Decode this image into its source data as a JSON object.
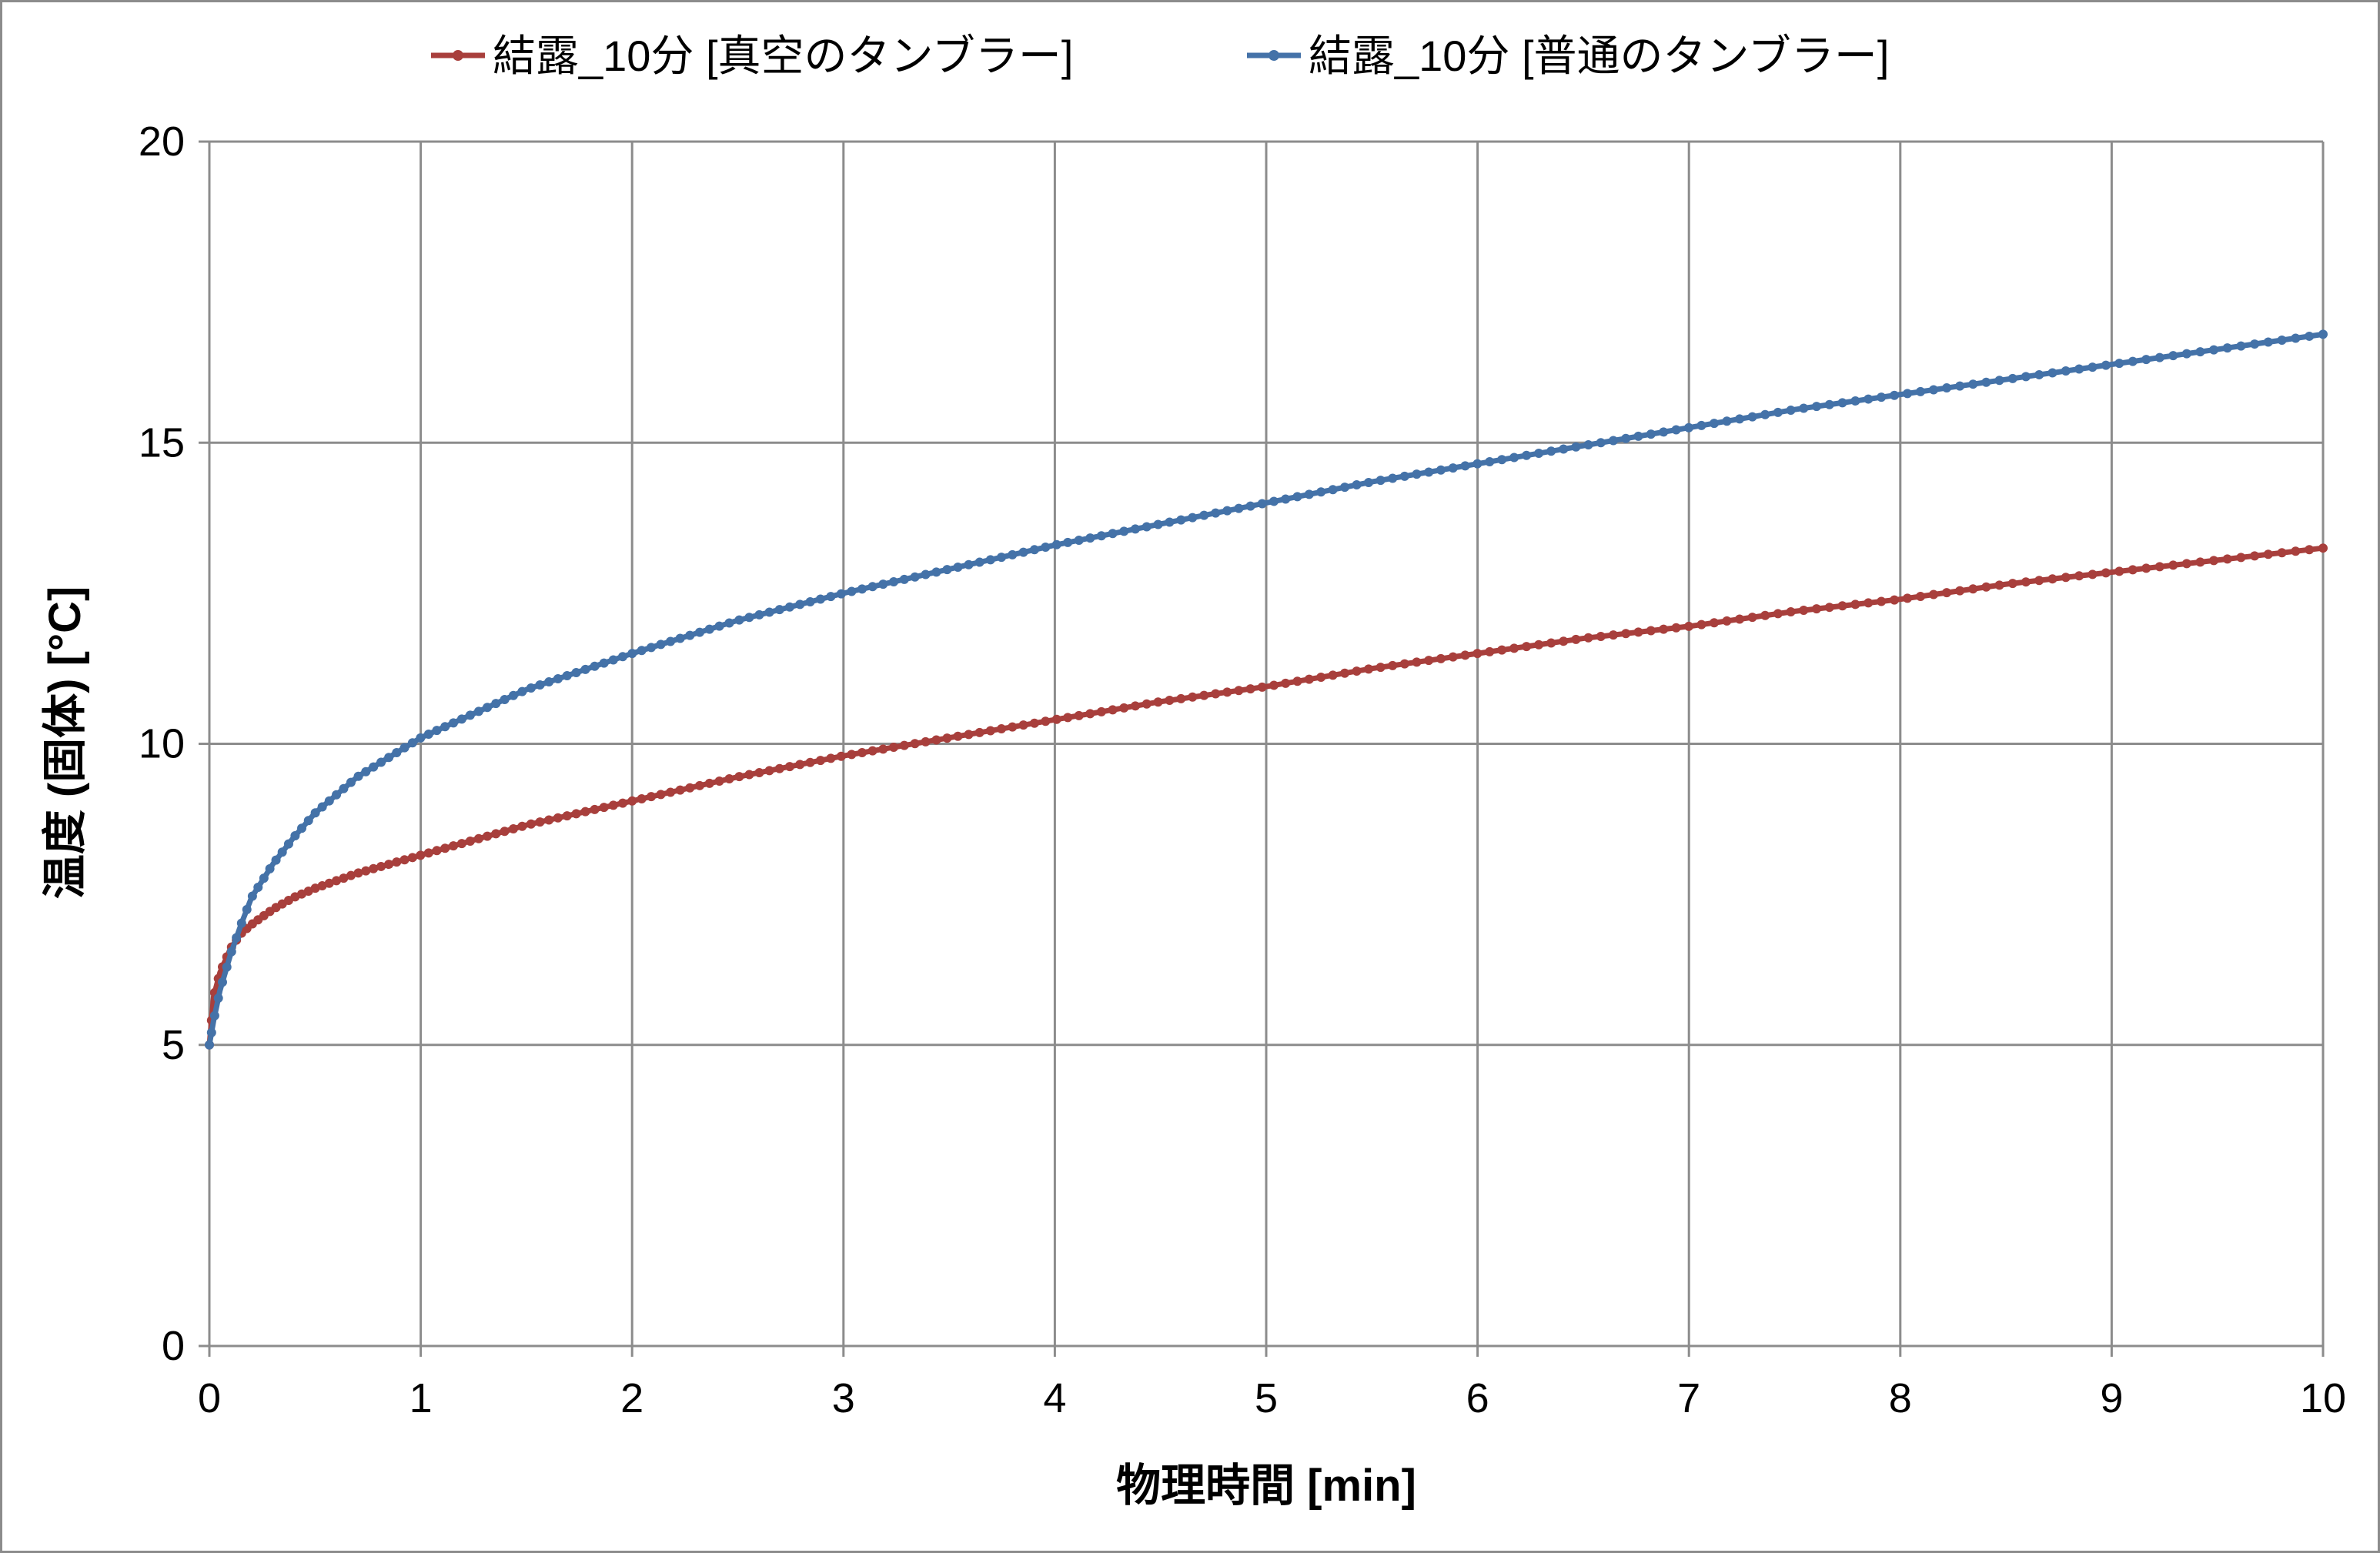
{
  "chart_data": {
    "type": "line",
    "title": "",
    "xlabel": "物理時間 [min]",
    "ylabel": "温度 (固体) [°C]",
    "xlim": [
      0,
      10
    ],
    "ylim": [
      0,
      20
    ],
    "xticks": [
      0,
      1,
      2,
      3,
      4,
      5,
      6,
      7,
      8,
      9,
      10
    ],
    "yticks": [
      0,
      5,
      10,
      15,
      20
    ],
    "grid": true,
    "legend_position": "top",
    "series": [
      {
        "name": "結露_10分 [真空のタンブラー]",
        "color": "#A83F3C",
        "x": [
          0,
          0.02,
          0.05,
          0.1,
          0.15,
          0.2,
          0.3,
          0.4,
          0.5,
          0.7,
          1,
          1.5,
          2,
          2.5,
          3,
          3.5,
          4,
          4.5,
          5,
          5.5,
          6,
          6.5,
          7,
          7.5,
          8,
          8.5,
          9,
          9.5,
          10
        ],
        "y": [
          5,
          5.8,
          6.2,
          6.6,
          6.85,
          7.0,
          7.25,
          7.45,
          7.6,
          7.85,
          8.15,
          8.65,
          9.05,
          9.45,
          9.8,
          10.1,
          10.4,
          10.7,
          10.95,
          11.25,
          11.5,
          11.75,
          11.95,
          12.2,
          12.4,
          12.65,
          12.85,
          13.05,
          13.25
        ]
      },
      {
        "name": "結露_10分 [普通のタンブラー]",
        "color": "#4472A8",
        "x": [
          0,
          0.02,
          0.05,
          0.1,
          0.15,
          0.2,
          0.3,
          0.4,
          0.5,
          0.7,
          1,
          1.5,
          2,
          2.5,
          3,
          3.5,
          4,
          4.5,
          5,
          5.5,
          6,
          6.5,
          7,
          7.5,
          8,
          8.5,
          9,
          9.5,
          10
        ],
        "y": [
          5,
          5.4,
          5.9,
          6.5,
          7.0,
          7.45,
          8.0,
          8.45,
          8.85,
          9.45,
          10.1,
          10.9,
          11.5,
          12.05,
          12.5,
          12.9,
          13.3,
          13.65,
          14.0,
          14.35,
          14.65,
          14.95,
          15.25,
          15.55,
          15.8,
          16.05,
          16.3,
          16.55,
          16.8
        ]
      }
    ]
  }
}
